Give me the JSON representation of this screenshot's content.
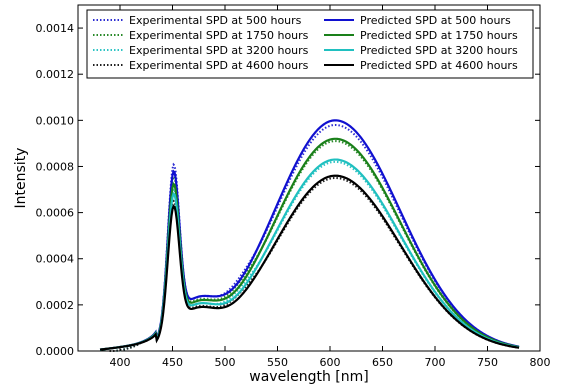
{
  "chart_data": {
    "type": "line",
    "xlabel": "wavelength [nm]",
    "ylabel": "Intensity",
    "xlim": [
      360,
      800
    ],
    "ylim": [
      0,
      0.0015
    ],
    "xticks": [
      "400",
      "450",
      "500",
      "550",
      "600",
      "650",
      "700",
      "750",
      "800"
    ],
    "yticks": [
      "0.0000",
      "0.0002",
      "0.0004",
      "0.0006",
      "0.0008",
      "0.0010",
      "0.0012",
      "0.0014"
    ],
    "grid": false,
    "legend_position": "top",
    "series": [
      {
        "name": "Experimental SPD at 500 hours",
        "style": "dotted",
        "color": "#2d2dd2",
        "peak_blue": 0.00075,
        "peak_main": 0.00098,
        "base": 0.00029
      },
      {
        "name": "Experimental SPD at 1750 hours",
        "style": "dotted",
        "color": "#2a8a2a",
        "peak_blue": 0.0007,
        "peak_main": 0.00091,
        "base": 0.00028
      },
      {
        "name": "Experimental SPD at 3200 hours",
        "style": "dotted",
        "color": "#2ec4c4",
        "peak_blue": 0.00065,
        "peak_main": 0.00082,
        "base": 0.00026
      },
      {
        "name": "Experimental SPD at 4600 hours",
        "style": "dotted",
        "color": "#202020",
        "peak_blue": 0.0006,
        "peak_main": 0.00075,
        "base": 0.00025
      },
      {
        "name": "Predicted SPD at 500 hours",
        "style": "solid",
        "color": "#1010d0",
        "peak_blue": 0.00072,
        "peak_main": 0.001,
        "base": 0.00029
      },
      {
        "name": "Predicted SPD at 1750 hours",
        "style": "solid",
        "color": "#1a801a",
        "peak_blue": 0.00067,
        "peak_main": 0.00092,
        "base": 0.00027
      },
      {
        "name": "Predicted SPD at 3200 hours",
        "style": "solid",
        "color": "#20c0c0",
        "peak_blue": 0.00063,
        "peak_main": 0.00083,
        "base": 0.00026
      },
      {
        "name": "Predicted SPD at 4600 hours",
        "style": "solid",
        "color": "#000000",
        "peak_blue": 0.00058,
        "peak_main": 0.00076,
        "base": 0.00024
      }
    ]
  }
}
